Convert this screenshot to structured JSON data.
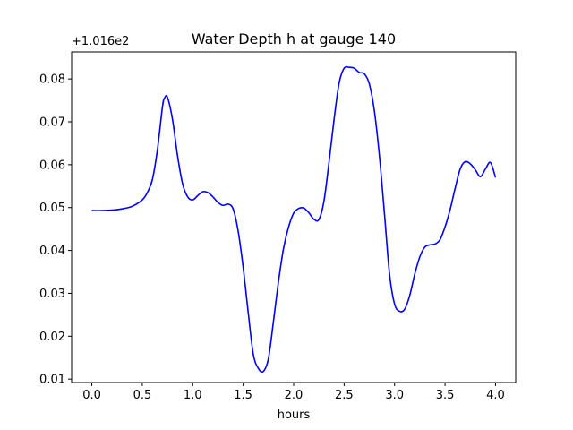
{
  "chart_data": {
    "type": "line",
    "title": "Water Depth h at gauge 140",
    "xlabel": "hours",
    "ylabel": "",
    "offset_text": "+1.016e2",
    "xlim": [
      -0.2,
      4.2
    ],
    "ylim": [
      0.0092,
      0.0863
    ],
    "xticks": [
      0.0,
      0.5,
      1.0,
      1.5,
      2.0,
      2.5,
      3.0,
      3.5,
      4.0
    ],
    "xtick_labels": [
      "0.0",
      "0.5",
      "1.0",
      "1.5",
      "2.0",
      "2.5",
      "3.0",
      "3.5",
      "4.0"
    ],
    "yticks": [
      0.01,
      0.02,
      0.03,
      0.04,
      0.05,
      0.06,
      0.07,
      0.08
    ],
    "ytick_labels": [
      "0.01",
      "0.02",
      "0.03",
      "0.04",
      "0.05",
      "0.06",
      "0.07",
      "0.08"
    ],
    "grid": false,
    "series": [
      {
        "color": "#0000ff",
        "x": [
          0.0,
          0.1,
          0.2,
          0.3,
          0.4,
          0.5,
          0.55,
          0.6,
          0.65,
          0.7,
          0.72,
          0.75,
          0.8,
          0.85,
          0.9,
          0.95,
          1.0,
          1.05,
          1.1,
          1.15,
          1.2,
          1.25,
          1.3,
          1.35,
          1.4,
          1.45,
          1.5,
          1.55,
          1.6,
          1.65,
          1.7,
          1.75,
          1.8,
          1.85,
          1.9,
          1.95,
          2.0,
          2.05,
          2.1,
          2.15,
          2.2,
          2.25,
          2.3,
          2.35,
          2.4,
          2.45,
          2.5,
          2.55,
          2.6,
          2.65,
          2.7,
          2.75,
          2.8,
          2.85,
          2.9,
          2.95,
          3.0,
          3.05,
          3.1,
          3.15,
          3.2,
          3.25,
          3.3,
          3.35,
          3.4,
          3.45,
          3.5,
          3.55,
          3.6,
          3.65,
          3.7,
          3.75,
          3.8,
          3.85,
          3.9,
          3.95,
          4.0
        ],
        "y": [
          0.0493,
          0.0493,
          0.0494,
          0.0497,
          0.0503,
          0.0518,
          0.0535,
          0.0565,
          0.0635,
          0.0735,
          0.0755,
          0.0757,
          0.0705,
          0.062,
          0.0555,
          0.0525,
          0.0518,
          0.0528,
          0.0537,
          0.0535,
          0.0525,
          0.0512,
          0.0505,
          0.0508,
          0.0497,
          0.0445,
          0.036,
          0.0255,
          0.0158,
          0.0125,
          0.0118,
          0.0148,
          0.0235,
          0.0328,
          0.0405,
          0.0455,
          0.0487,
          0.0498,
          0.0499,
          0.0488,
          0.0473,
          0.0472,
          0.0515,
          0.0605,
          0.0705,
          0.079,
          0.0825,
          0.0827,
          0.0825,
          0.0815,
          0.0812,
          0.0788,
          0.0725,
          0.062,
          0.0485,
          0.0345,
          0.0275,
          0.0258,
          0.0263,
          0.0295,
          0.0345,
          0.0385,
          0.0408,
          0.0413,
          0.0415,
          0.0425,
          0.0455,
          0.0495,
          0.0545,
          0.059,
          0.0607,
          0.0602,
          0.0588,
          0.0572,
          0.059,
          0.0605,
          0.057
        ]
      }
    ]
  }
}
